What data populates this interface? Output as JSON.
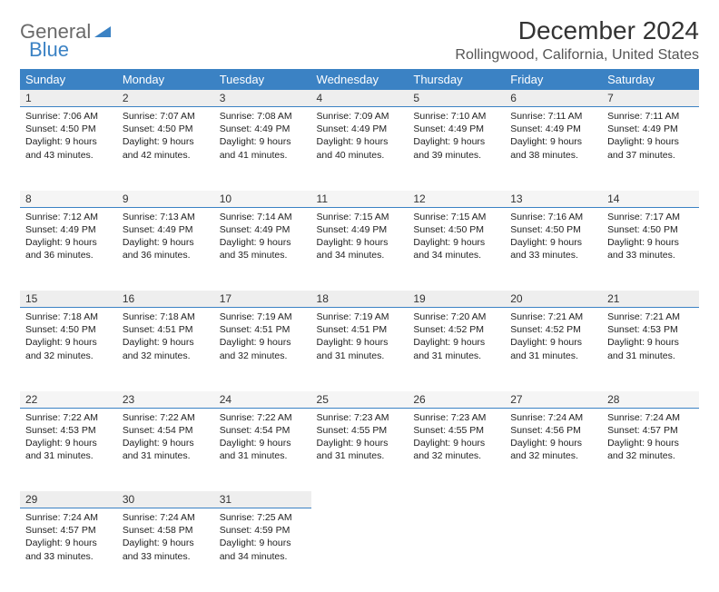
{
  "logo": {
    "text1": "General",
    "text2": "Blue"
  },
  "title": "December 2024",
  "location": "Rollingwood, California, United States",
  "colors": {
    "header_bg": "#3b82c4",
    "header_fg": "#ffffff",
    "daynum_bg": "#eeeeee",
    "rule": "#3b82c4"
  },
  "weekdays": [
    "Sunday",
    "Monday",
    "Tuesday",
    "Wednesday",
    "Thursday",
    "Friday",
    "Saturday"
  ],
  "weeks": [
    [
      {
        "n": "1",
        "sunrise": "Sunrise: 7:06 AM",
        "sunset": "Sunset: 4:50 PM",
        "day": "Daylight: 9 hours and 43 minutes."
      },
      {
        "n": "2",
        "sunrise": "Sunrise: 7:07 AM",
        "sunset": "Sunset: 4:50 PM",
        "day": "Daylight: 9 hours and 42 minutes."
      },
      {
        "n": "3",
        "sunrise": "Sunrise: 7:08 AM",
        "sunset": "Sunset: 4:49 PM",
        "day": "Daylight: 9 hours and 41 minutes."
      },
      {
        "n": "4",
        "sunrise": "Sunrise: 7:09 AM",
        "sunset": "Sunset: 4:49 PM",
        "day": "Daylight: 9 hours and 40 minutes."
      },
      {
        "n": "5",
        "sunrise": "Sunrise: 7:10 AM",
        "sunset": "Sunset: 4:49 PM",
        "day": "Daylight: 9 hours and 39 minutes."
      },
      {
        "n": "6",
        "sunrise": "Sunrise: 7:11 AM",
        "sunset": "Sunset: 4:49 PM",
        "day": "Daylight: 9 hours and 38 minutes."
      },
      {
        "n": "7",
        "sunrise": "Sunrise: 7:11 AM",
        "sunset": "Sunset: 4:49 PM",
        "day": "Daylight: 9 hours and 37 minutes."
      }
    ],
    [
      {
        "n": "8",
        "sunrise": "Sunrise: 7:12 AM",
        "sunset": "Sunset: 4:49 PM",
        "day": "Daylight: 9 hours and 36 minutes."
      },
      {
        "n": "9",
        "sunrise": "Sunrise: 7:13 AM",
        "sunset": "Sunset: 4:49 PM",
        "day": "Daylight: 9 hours and 36 minutes."
      },
      {
        "n": "10",
        "sunrise": "Sunrise: 7:14 AM",
        "sunset": "Sunset: 4:49 PM",
        "day": "Daylight: 9 hours and 35 minutes."
      },
      {
        "n": "11",
        "sunrise": "Sunrise: 7:15 AM",
        "sunset": "Sunset: 4:49 PM",
        "day": "Daylight: 9 hours and 34 minutes."
      },
      {
        "n": "12",
        "sunrise": "Sunrise: 7:15 AM",
        "sunset": "Sunset: 4:50 PM",
        "day": "Daylight: 9 hours and 34 minutes."
      },
      {
        "n": "13",
        "sunrise": "Sunrise: 7:16 AM",
        "sunset": "Sunset: 4:50 PM",
        "day": "Daylight: 9 hours and 33 minutes."
      },
      {
        "n": "14",
        "sunrise": "Sunrise: 7:17 AM",
        "sunset": "Sunset: 4:50 PM",
        "day": "Daylight: 9 hours and 33 minutes."
      }
    ],
    [
      {
        "n": "15",
        "sunrise": "Sunrise: 7:18 AM",
        "sunset": "Sunset: 4:50 PM",
        "day": "Daylight: 9 hours and 32 minutes."
      },
      {
        "n": "16",
        "sunrise": "Sunrise: 7:18 AM",
        "sunset": "Sunset: 4:51 PM",
        "day": "Daylight: 9 hours and 32 minutes."
      },
      {
        "n": "17",
        "sunrise": "Sunrise: 7:19 AM",
        "sunset": "Sunset: 4:51 PM",
        "day": "Daylight: 9 hours and 32 minutes."
      },
      {
        "n": "18",
        "sunrise": "Sunrise: 7:19 AM",
        "sunset": "Sunset: 4:51 PM",
        "day": "Daylight: 9 hours and 31 minutes."
      },
      {
        "n": "19",
        "sunrise": "Sunrise: 7:20 AM",
        "sunset": "Sunset: 4:52 PM",
        "day": "Daylight: 9 hours and 31 minutes."
      },
      {
        "n": "20",
        "sunrise": "Sunrise: 7:21 AM",
        "sunset": "Sunset: 4:52 PM",
        "day": "Daylight: 9 hours and 31 minutes."
      },
      {
        "n": "21",
        "sunrise": "Sunrise: 7:21 AM",
        "sunset": "Sunset: 4:53 PM",
        "day": "Daylight: 9 hours and 31 minutes."
      }
    ],
    [
      {
        "n": "22",
        "sunrise": "Sunrise: 7:22 AM",
        "sunset": "Sunset: 4:53 PM",
        "day": "Daylight: 9 hours and 31 minutes."
      },
      {
        "n": "23",
        "sunrise": "Sunrise: 7:22 AM",
        "sunset": "Sunset: 4:54 PM",
        "day": "Daylight: 9 hours and 31 minutes."
      },
      {
        "n": "24",
        "sunrise": "Sunrise: 7:22 AM",
        "sunset": "Sunset: 4:54 PM",
        "day": "Daylight: 9 hours and 31 minutes."
      },
      {
        "n": "25",
        "sunrise": "Sunrise: 7:23 AM",
        "sunset": "Sunset: 4:55 PM",
        "day": "Daylight: 9 hours and 31 minutes."
      },
      {
        "n": "26",
        "sunrise": "Sunrise: 7:23 AM",
        "sunset": "Sunset: 4:55 PM",
        "day": "Daylight: 9 hours and 32 minutes."
      },
      {
        "n": "27",
        "sunrise": "Sunrise: 7:24 AM",
        "sunset": "Sunset: 4:56 PM",
        "day": "Daylight: 9 hours and 32 minutes."
      },
      {
        "n": "28",
        "sunrise": "Sunrise: 7:24 AM",
        "sunset": "Sunset: 4:57 PM",
        "day": "Daylight: 9 hours and 32 minutes."
      }
    ],
    [
      {
        "n": "29",
        "sunrise": "Sunrise: 7:24 AM",
        "sunset": "Sunset: 4:57 PM",
        "day": "Daylight: 9 hours and 33 minutes."
      },
      {
        "n": "30",
        "sunrise": "Sunrise: 7:24 AM",
        "sunset": "Sunset: 4:58 PM",
        "day": "Daylight: 9 hours and 33 minutes."
      },
      {
        "n": "31",
        "sunrise": "Sunrise: 7:25 AM",
        "sunset": "Sunset: 4:59 PM",
        "day": "Daylight: 9 hours and 34 minutes."
      },
      null,
      null,
      null,
      null
    ]
  ]
}
